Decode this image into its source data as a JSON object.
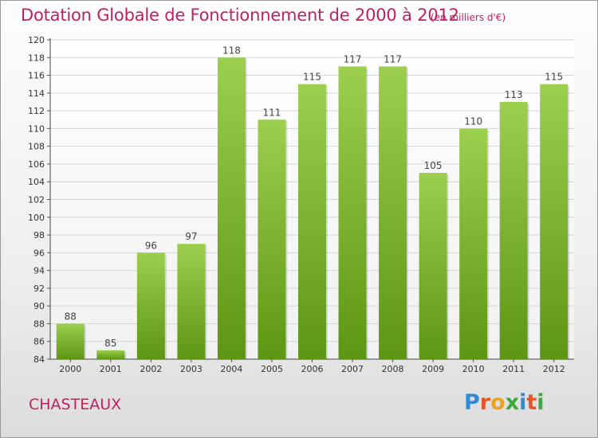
{
  "title": "Dotation Globale de Fonctionnement de 2000 à 2012",
  "subtitle": "(en milliers d'€)",
  "commune": "CHASTEAUX",
  "logo": {
    "text": "Proxiti",
    "letters": [
      "P",
      "r",
      "o",
      "x",
      "i",
      "t",
      "i"
    ],
    "colors": [
      "#2e8bd6",
      "#e8542a",
      "#f0a21c",
      "#3aaa3a",
      "#2e8bd6",
      "#e8542a",
      "#3aaa3a"
    ]
  },
  "colors": {
    "bar_top": "#9ccf4e",
    "bar_bottom": "#5d9612",
    "accent": "#c01f63",
    "grid": "#d6d6d6"
  },
  "chart_data": {
    "type": "bar",
    "categories": [
      "2000",
      "2001",
      "2002",
      "2003",
      "2004",
      "2005",
      "2006",
      "2007",
      "2008",
      "2009",
      "2010",
      "2011",
      "2012"
    ],
    "values": [
      88,
      85,
      96,
      97,
      118,
      111,
      115,
      117,
      117,
      105,
      110,
      113,
      115
    ],
    "data_labels": [
      "88",
      "85",
      "96",
      "97",
      "118",
      "111",
      "115",
      "117",
      "117",
      "105",
      "110",
      "113",
      "115"
    ],
    "yticks": [
      84,
      86,
      88,
      90,
      92,
      94,
      96,
      98,
      100,
      102,
      104,
      106,
      108,
      110,
      112,
      114,
      116,
      118,
      120
    ],
    "ytick_labels": [
      "84",
      "86",
      "88",
      "90",
      "92",
      "94",
      "96",
      "98",
      "100",
      "102",
      "104",
      "106",
      "108",
      "110",
      "112",
      "114",
      "116",
      "118",
      "120"
    ],
    "ylim": [
      84,
      120
    ],
    "grid": true,
    "legend": "none"
  }
}
